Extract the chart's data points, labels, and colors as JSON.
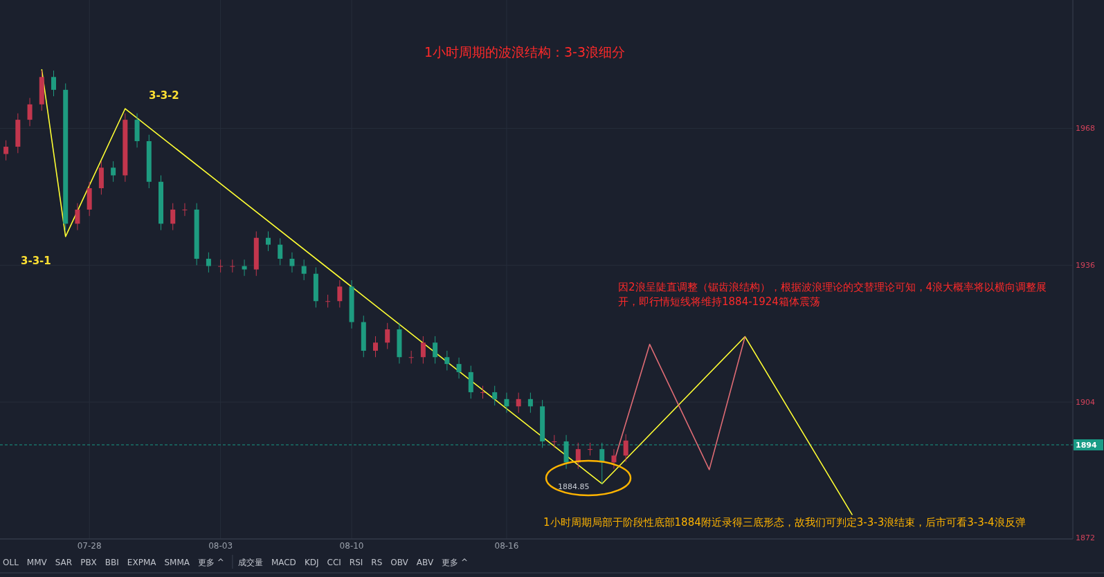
{
  "chart_data": {
    "type": "candlestick",
    "title": "1小时周期的波浪结构：3-3浪细分",
    "categories": [
      null,
      null,
      null,
      null,
      null,
      null,
      null,
      "07-28",
      null,
      null,
      null,
      null,
      null,
      null,
      null,
      null,
      null,
      null,
      "08-03",
      null,
      null,
      null,
      null,
      null,
      null,
      null,
      null,
      null,
      null,
      "08-10",
      null,
      null,
      null,
      null,
      null,
      null,
      null,
      null,
      null,
      null,
      null,
      null,
      "08-16",
      null,
      null,
      null,
      null,
      null,
      null,
      null,
      null,
      null,
      null,
      null,
      null,
      null,
      null,
      null,
      null,
      null,
      null,
      null,
      null,
      null,
      null,
      null,
      null,
      null,
      null,
      null,
      null,
      null,
      null,
      null,
      null,
      null,
      null,
      null,
      null,
      null,
      null,
      null,
      null,
      null,
      null,
      null,
      null,
      null,
      null,
      null
    ],
    "ohlc": [
      [
        1962,
        1965.2,
        1960.5,
        1963.7
      ],
      [
        1963.7,
        1971.5,
        1962.2,
        1970
      ],
      [
        1970,
        1975.1,
        1968.5,
        1973.6
      ],
      [
        1973.6,
        1981.5,
        1972.1,
        1980
      ],
      [
        1980,
        1981.5,
        1975.5,
        1977
      ],
      [
        1977,
        1978.5,
        1944.2,
        1945.7
      ],
      [
        1945.7,
        1950.5,
        1944.2,
        1949
      ],
      [
        1949,
        1955.5,
        1947.5,
        1954
      ],
      [
        1954,
        1960.3,
        1952.5,
        1958.8
      ],
      [
        1958.8,
        1960.3,
        1955.5,
        1957
      ],
      [
        1957,
        1971.5,
        1955.5,
        1970
      ],
      [
        1970,
        1971.5,
        1963.5,
        1965
      ],
      [
        1965,
        1966.5,
        1954,
        1955.5
      ],
      [
        1955.5,
        1957,
        1944.2,
        1945.7
      ],
      [
        1945.7,
        1950.5,
        1944.2,
        1949
      ],
      [
        1949,
        1950.5,
        1947.5,
        1949
      ],
      [
        1949,
        1950.5,
        1936,
        1937.5
      ],
      [
        1937.5,
        1939,
        1934.3,
        1935.8
      ],
      [
        1935.8,
        1937.3,
        1934.3,
        1935.8
      ],
      [
        1935.8,
        1937.3,
        1934.3,
        1935.8
      ],
      [
        1935.8,
        1937.3,
        1933.5,
        1935
      ],
      [
        1935,
        1943.9,
        1933.5,
        1942.4
      ],
      [
        1942.4,
        1943.9,
        1939.3,
        1940.8
      ],
      [
        1940.8,
        1942.3,
        1936,
        1937.5
      ],
      [
        1937.5,
        1939,
        1934.3,
        1935.8
      ],
      [
        1935.8,
        1937.3,
        1932.5,
        1934
      ],
      [
        1934,
        1935.5,
        1926.1,
        1927.6
      ],
      [
        1927.6,
        1929.1,
        1926.1,
        1927.6
      ],
      [
        1927.6,
        1932.5,
        1926.1,
        1931
      ],
      [
        1931,
        1932.5,
        1921.2,
        1922.7
      ],
      [
        1922.7,
        1924.2,
        1914.5,
        1916
      ],
      [
        1916,
        1919.4,
        1914.5,
        1917.9
      ],
      [
        1917.9,
        1922.5,
        1916.4,
        1921
      ],
      [
        1921,
        1922.5,
        1913,
        1914.5
      ],
      [
        1914.5,
        1916,
        1913,
        1914.5
      ],
      [
        1914.5,
        1919.4,
        1913,
        1917.9
      ],
      [
        1917.9,
        1919.4,
        1913,
        1914.5
      ],
      [
        1914.5,
        1916,
        1911.4,
        1912.9
      ],
      [
        1912.9,
        1914.4,
        1909.5,
        1911
      ],
      [
        1911,
        1912.5,
        1904.8,
        1906.3
      ],
      [
        1906.3,
        1907.8,
        1904.8,
        1906.3
      ],
      [
        1906.3,
        1907.8,
        1903.2,
        1904.7
      ],
      [
        1904.7,
        1906.2,
        1901.5,
        1903
      ],
      [
        1903,
        1906.2,
        1901.5,
        1904.7
      ],
      [
        1904.7,
        1906.2,
        1901.5,
        1903
      ],
      [
        1903,
        1904.5,
        1893.3,
        1894.8
      ],
      [
        1894.8,
        1896.3,
        1893.3,
        1894.8
      ],
      [
        1894.8,
        1896.3,
        1888.4,
        1889.9
      ],
      [
        1889.9,
        1894.5,
        1888.4,
        1893
      ],
      [
        1893,
        1894.5,
        1891.5,
        1893
      ],
      [
        1893,
        1894.5,
        1884.85,
        1889.9
      ],
      [
        1889.9,
        1893,
        1888.4,
        1891.5
      ],
      [
        1891.5,
        1896.5,
        1890,
        1895
      ],
      null,
      null,
      null,
      null,
      null,
      null,
      null,
      null,
      null,
      null,
      null,
      null,
      null,
      null,
      null,
      null,
      null,
      null,
      null,
      null,
      null,
      null,
      null,
      null,
      null,
      null,
      null,
      null,
      null,
      null,
      null,
      null,
      null,
      null,
      null,
      null,
      null
    ],
    "series": [
      {
        "type": "line",
        "color": "#ffff33",
        "values": [
          null,
          null,
          null,
          1981.8,
          null,
          1942.7,
          null,
          null,
          null,
          null,
          1972.6,
          null,
          null,
          null,
          null,
          null,
          null,
          null,
          null,
          null,
          null,
          null,
          null,
          null,
          null,
          null,
          null,
          null,
          null,
          null,
          null,
          null,
          null,
          null,
          null,
          null,
          null,
          null,
          null,
          null,
          null,
          null,
          null,
          null,
          null,
          null,
          null,
          null,
          null,
          null,
          1884.9,
          null,
          null,
          null,
          null,
          null,
          null,
          null,
          null,
          null,
          null,
          null,
          1919.3,
          null,
          null,
          null,
          null,
          null,
          null,
          null,
          null,
          1877.6,
          null,
          null,
          null,
          null,
          null,
          null,
          null,
          null,
          null,
          null,
          null,
          null,
          null,
          null,
          null,
          null,
          null,
          null
        ]
      },
      {
        "type": "line",
        "color": "#e06c75",
        "values": [
          null,
          null,
          null,
          null,
          null,
          null,
          null,
          null,
          null,
          null,
          null,
          null,
          null,
          null,
          null,
          null,
          null,
          null,
          null,
          null,
          null,
          null,
          null,
          null,
          null,
          null,
          null,
          null,
          null,
          null,
          null,
          null,
          null,
          null,
          null,
          null,
          null,
          null,
          null,
          null,
          null,
          null,
          null,
          null,
          null,
          null,
          null,
          null,
          null,
          null,
          null,
          1889.9,
          null,
          null,
          1917.5,
          null,
          null,
          null,
          null,
          1888.2,
          null,
          null,
          1919.3,
          null,
          null,
          null,
          null,
          null,
          null,
          null,
          null,
          null,
          null,
          null,
          null,
          null,
          null,
          null,
          null,
          null,
          null,
          null,
          null,
          null,
          null,
          null,
          null,
          null,
          null,
          null
        ]
      }
    ],
    "ylim": [
      1872,
      1998
    ],
    "yticks": [
      1968,
      1936,
      1904,
      1872
    ],
    "grid": true,
    "ref_lines": [
      {
        "axis": "y",
        "value": 1894,
        "label": "1894",
        "color": "#1a9c86",
        "line_style": "dashed"
      }
    ],
    "annotations": [
      "因2浪呈陡直调整（锯齿浪结构），根据波浪理论的交替理论可知，4浪大概率将以横向调整展开，即行情短线将维持1884-1924箱体震荡",
      "1小时周期局部于阶段性底部1884附近录得三底形态，故我们可判定3-3-3浪结束，后市可看3-3-4浪反弹",
      "OLL",
      "MMV",
      "SAR",
      "PBX",
      "BBI",
      "EXPMA",
      "SMMA",
      "更多 ^",
      "成交量",
      "MACD",
      "KDJ",
      "CCI",
      "RSI",
      "RS",
      "OBV",
      "ABV",
      "更多 ^",
      "3-3-1",
      "3-3-2",
      "1884.85"
    ]
  }
}
